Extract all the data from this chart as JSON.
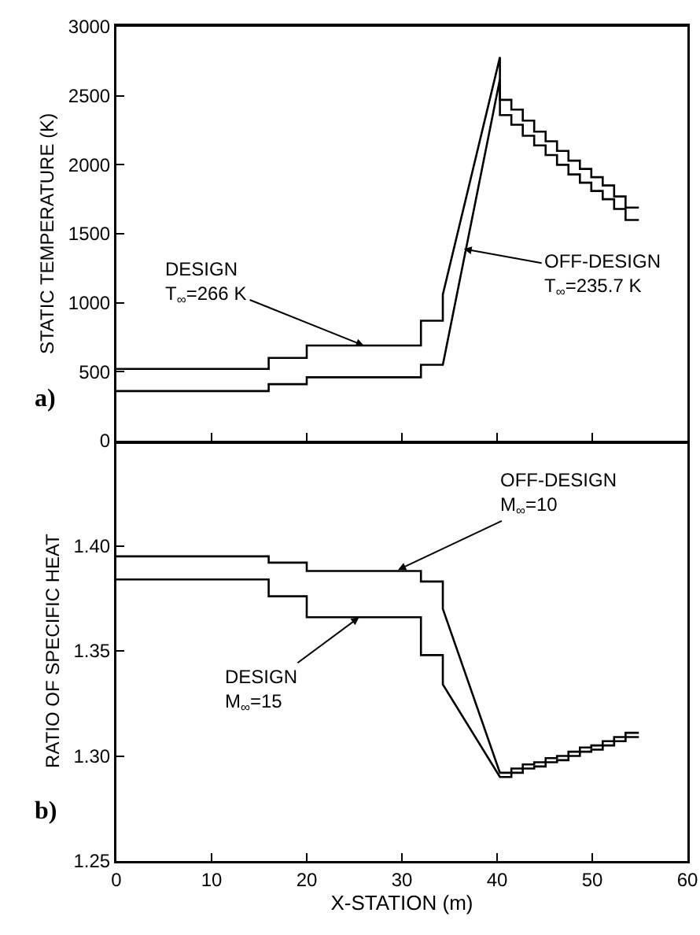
{
  "chart_data": [
    {
      "type": "line",
      "ylabel": "STATIC TEMPERATURE (K)",
      "xlim": [
        0,
        60
      ],
      "xticks": [
        0,
        10,
        20,
        30,
        40,
        50,
        60
      ],
      "ylim": [
        0,
        3000
      ],
      "yticks": [
        0,
        500,
        1000,
        1500,
        2000,
        2500,
        3000
      ],
      "tick_labels": "y",
      "line_style": "solid",
      "series": [
        {
          "color": "#000000",
          "x": [
            0,
            16,
            16,
            20,
            20,
            32,
            32,
            34.3,
            34.3,
            40.3,
            40.3,
            41.5,
            41.5,
            42.7,
            42.7,
            43.9,
            43.9,
            45.1,
            45.1,
            46.3,
            46.3,
            47.5,
            47.5,
            48.7,
            48.7,
            49.9,
            49.9,
            51.1,
            51.1,
            52.3,
            52.3,
            53.5,
            53.5,
            54.9
          ],
          "values": [
            520,
            520,
            600,
            600,
            690,
            690,
            870,
            870,
            1060,
            2780,
            2470,
            2470,
            2400,
            2400,
            2320,
            2320,
            2240,
            2240,
            2170,
            2170,
            2100,
            2100,
            2030,
            2030,
            1970,
            1970,
            1910,
            1910,
            1850,
            1850,
            1770,
            1770,
            1690,
            1690
          ]
        },
        {
          "color": "#000000",
          "x": [
            0,
            16,
            16,
            20,
            20,
            32,
            32,
            34.3,
            34.3,
            40.3,
            40.3,
            41.5,
            41.5,
            42.7,
            42.7,
            43.9,
            43.9,
            45.1,
            45.1,
            46.3,
            46.3,
            47.5,
            47.5,
            48.7,
            48.7,
            49.9,
            49.9,
            51.1,
            51.1,
            52.3,
            52.3,
            53.5,
            53.5,
            54.9
          ],
          "values": [
            360,
            360,
            410,
            410,
            460,
            460,
            550,
            550,
            550,
            2620,
            2360,
            2360,
            2290,
            2290,
            2210,
            2210,
            2140,
            2140,
            2070,
            2070,
            2000,
            2000,
            1930,
            1930,
            1870,
            1870,
            1810,
            1810,
            1750,
            1750,
            1680,
            1680,
            1600,
            1600
          ]
        }
      ],
      "annotations": [
        {
          "text": "DESIGN\nT$_{∞}$=266 K",
          "x": 26,
          "y": 690
        },
        {
          "text": "OFF-DESIGN\nT$_{∞}$=235.7 K",
          "x": 36.5,
          "y": 1390
        },
        "a)"
      ]
    },
    {
      "type": "line",
      "xlabel": "X-STATION (m)",
      "ylabel": "RATIO OF SPECIFIC HEAT",
      "xlim": [
        0,
        60
      ],
      "xticks": [
        0,
        10,
        20,
        30,
        40,
        50,
        60
      ],
      "ylim": [
        1.25,
        1.45
      ],
      "yticks": [
        1.25,
        {
          "value": 1.3,
          "label": "1.30"
        },
        1.35,
        {
          "value": 1.4,
          "label": "1.40"
        }
      ],
      "line_style": "solid",
      "series": [
        {
          "color": "#000000",
          "x": [
            0,
            16,
            16,
            20,
            20,
            32,
            32,
            34.3,
            34.3,
            40.3,
            41.5,
            41.5,
            42.7,
            42.7,
            43.9,
            43.9,
            45.1,
            45.1,
            46.3,
            46.3,
            47.5,
            47.5,
            48.7,
            48.7,
            49.9,
            49.9,
            51.1,
            51.1,
            52.3,
            52.3,
            53.5,
            53.5,
            54.9
          ],
          "values": [
            1.395,
            1.395,
            1.392,
            1.392,
            1.388,
            1.388,
            1.383,
            1.383,
            1.37,
            1.292,
            1.292,
            1.294,
            1.294,
            1.296,
            1.296,
            1.297,
            1.297,
            1.299,
            1.299,
            1.3,
            1.3,
            1.302,
            1.302,
            1.304,
            1.304,
            1.305,
            1.305,
            1.307,
            1.307,
            1.309,
            1.309,
            1.311,
            1.311
          ]
        },
        {
          "color": "#000000",
          "x": [
            0,
            16,
            16,
            20,
            20,
            32,
            32,
            34.3,
            34.3,
            40.3,
            41.5,
            41.5,
            42.7,
            42.7,
            43.9,
            43.9,
            45.1,
            45.1,
            46.3,
            46.3,
            47.5,
            47.5,
            48.7,
            48.7,
            49.9,
            49.9,
            51.1,
            51.1,
            52.3,
            52.3,
            53.5,
            53.5,
            54.9
          ],
          "values": [
            1.384,
            1.384,
            1.376,
            1.376,
            1.366,
            1.366,
            1.348,
            1.348,
            1.334,
            1.29,
            1.29,
            1.292,
            1.292,
            1.294,
            1.294,
            1.295,
            1.295,
            1.297,
            1.297,
            1.298,
            1.298,
            1.3,
            1.3,
            1.302,
            1.302,
            1.303,
            1.303,
            1.305,
            1.305,
            1.307,
            1.307,
            1.309,
            1.309
          ]
        }
      ],
      "annotations": [
        {
          "text": "OFF-DESIGN\nM$_{∞}$=10",
          "x": 29.6,
          "y": 1.3886
        },
        {
          "text": "DESIGN\nM$_{∞}$=15",
          "x": 25.5,
          "y": 1.366
        },
        "b)"
      ]
    }
  ]
}
